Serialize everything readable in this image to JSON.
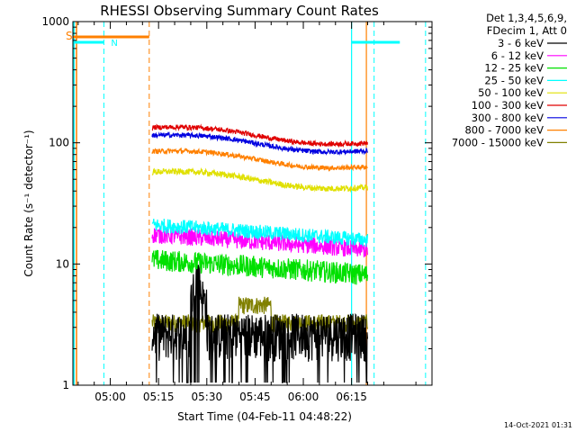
{
  "chart_data": {
    "type": "line",
    "title": "RHESSI Observing Summary Count Rates",
    "xlabel": "Start Time (04-Feb-11 04:48:22)",
    "ylabel": "Count Rate (s⁻¹ detector⁻¹)",
    "y_scale": "log",
    "ylim": [
      1,
      1000
    ],
    "y_ticks": [
      "1",
      "10",
      "100",
      "1000"
    ],
    "x_start_minutes": 288.37,
    "x_end_minutes": 400.0,
    "x_ticks": [
      "05:00",
      "05:15",
      "05:30",
      "05:45",
      "06:00",
      "06:15"
    ],
    "legend_header": [
      "Det 1,3,4,5,6,9,",
      "FDecim 1, Att 0"
    ],
    "series": [
      {
        "name": "3 - 6 keV",
        "color": "#000000",
        "level": 2.6,
        "noise": 0.25
      },
      {
        "name": "6 - 12 keV",
        "color": "#ff00ff",
        "level": 14.5,
        "noise": 0.07
      },
      {
        "name": "12 - 25 keV",
        "color": "#00e000",
        "level": 9.0,
        "noise": 0.09
      },
      {
        "name": "25 - 50 keV",
        "color": "#00ffff",
        "level": 17.5,
        "noise": 0.06
      },
      {
        "name": "50 - 100 keV",
        "color": "#e0e000",
        "level": 46,
        "noise": 0.025
      },
      {
        "name": "100 - 300 keV",
        "color": "#e00000",
        "level": 107,
        "noise": 0.02
      },
      {
        "name": "300 - 800 keV",
        "color": "#0000e0",
        "level": 92,
        "noise": 0.02
      },
      {
        "name": "800 - 7000 keV",
        "color": "#ff8000",
        "level": 68,
        "noise": 0.02
      },
      {
        "name": "7000 - 15000 keV",
        "color": "#808000",
        "level": 3.2,
        "noise": 0.12
      }
    ],
    "flags": [
      {
        "label": "S",
        "color": "#ff8000"
      },
      {
        "label": "N",
        "color": "#00ffff"
      }
    ],
    "footer_date": "14-Oct-2021 01:31"
  }
}
